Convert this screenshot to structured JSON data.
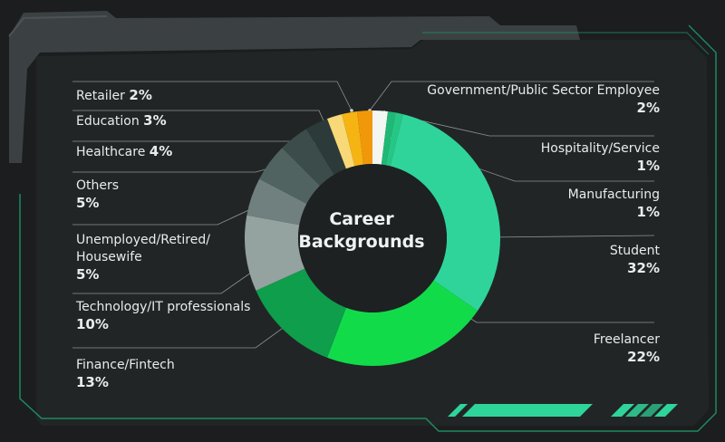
{
  "chart_data": {
    "type": "pie",
    "variant": "donut",
    "title_lines": [
      "Career",
      "Backgrounds"
    ],
    "slices": [
      {
        "label": "Government/Public Sector Employee",
        "display": "2%",
        "value": 2,
        "color": "#f4f6f2"
      },
      {
        "label": "Hospitality/Service",
        "display": "1%",
        "value": 1,
        "color": "#1fb877"
      },
      {
        "label": "Manufacturing",
        "display": "1%",
        "value": 1,
        "color": "#26c785"
      },
      {
        "label": "Student",
        "display": "32%",
        "value": 32,
        "color": "#2fd49a"
      },
      {
        "label": "Freelancer",
        "display": "22%",
        "value": 22,
        "color": "#12db4a"
      },
      {
        "label": "Finance/Fintech",
        "display": "13%",
        "value": 13,
        "color": "#0e9e4c"
      },
      {
        "label": "Technology/IT professionals",
        "display": "10%",
        "value": 10,
        "color": "#94a2a0"
      },
      {
        "label": "Unemployed/Retired/Housewife",
        "display": "5%",
        "value": 5,
        "color": "#6f807e"
      },
      {
        "label": "Others",
        "display": "5%",
        "value": 5,
        "color": "#516361"
      },
      {
        "label": "Healthcare",
        "display": "4%",
        "value": 4,
        "color": "#3c4c4a"
      },
      {
        "label": "Education",
        "display": "3%",
        "value": 3,
        "color": "#2c3a39"
      },
      {
        "label": "Retailer",
        "display": "2%",
        "value": 2,
        "color": "#f8d877"
      },
      {
        "label": "Retailer",
        "display": "2%",
        "value": 2,
        "color": "#f6b412"
      },
      {
        "label": "Retailer",
        "display": "2%",
        "value": 2,
        "color": "#f1980a"
      }
    ],
    "labels": {
      "retailer": {
        "name": "Retailer",
        "pct": "2%"
      },
      "education": {
        "name": "Education",
        "pct": "3%"
      },
      "healthcare": {
        "name": "Healthcare",
        "pct": "4%"
      },
      "others": {
        "name": "Others",
        "pct": "5%"
      },
      "unemployed": {
        "name1": "Unemployed/Retired/",
        "name2": "Housewife",
        "pct": "5%"
      },
      "technology": {
        "name": "Technology/IT professionals",
        "pct": "10%"
      },
      "finance": {
        "name": "Finance/Fintech",
        "pct": "13%"
      },
      "government": {
        "name": "Government/Public Sector Employee",
        "pct": "2%"
      },
      "hospitality": {
        "name": "Hospitality/Service",
        "pct": "1%"
      },
      "manufacturing": {
        "name": "Manufacturing",
        "pct": "1%"
      },
      "student": {
        "name": "Student",
        "pct": "32%"
      },
      "freelancer": {
        "name": "Freelancer",
        "pct": "22%"
      }
    },
    "theme": {
      "background": "#1b1d1e",
      "panel": "#232627",
      "frame": "#3a4043",
      "accent": "#2fd49a",
      "hole": "#1e2122"
    }
  }
}
